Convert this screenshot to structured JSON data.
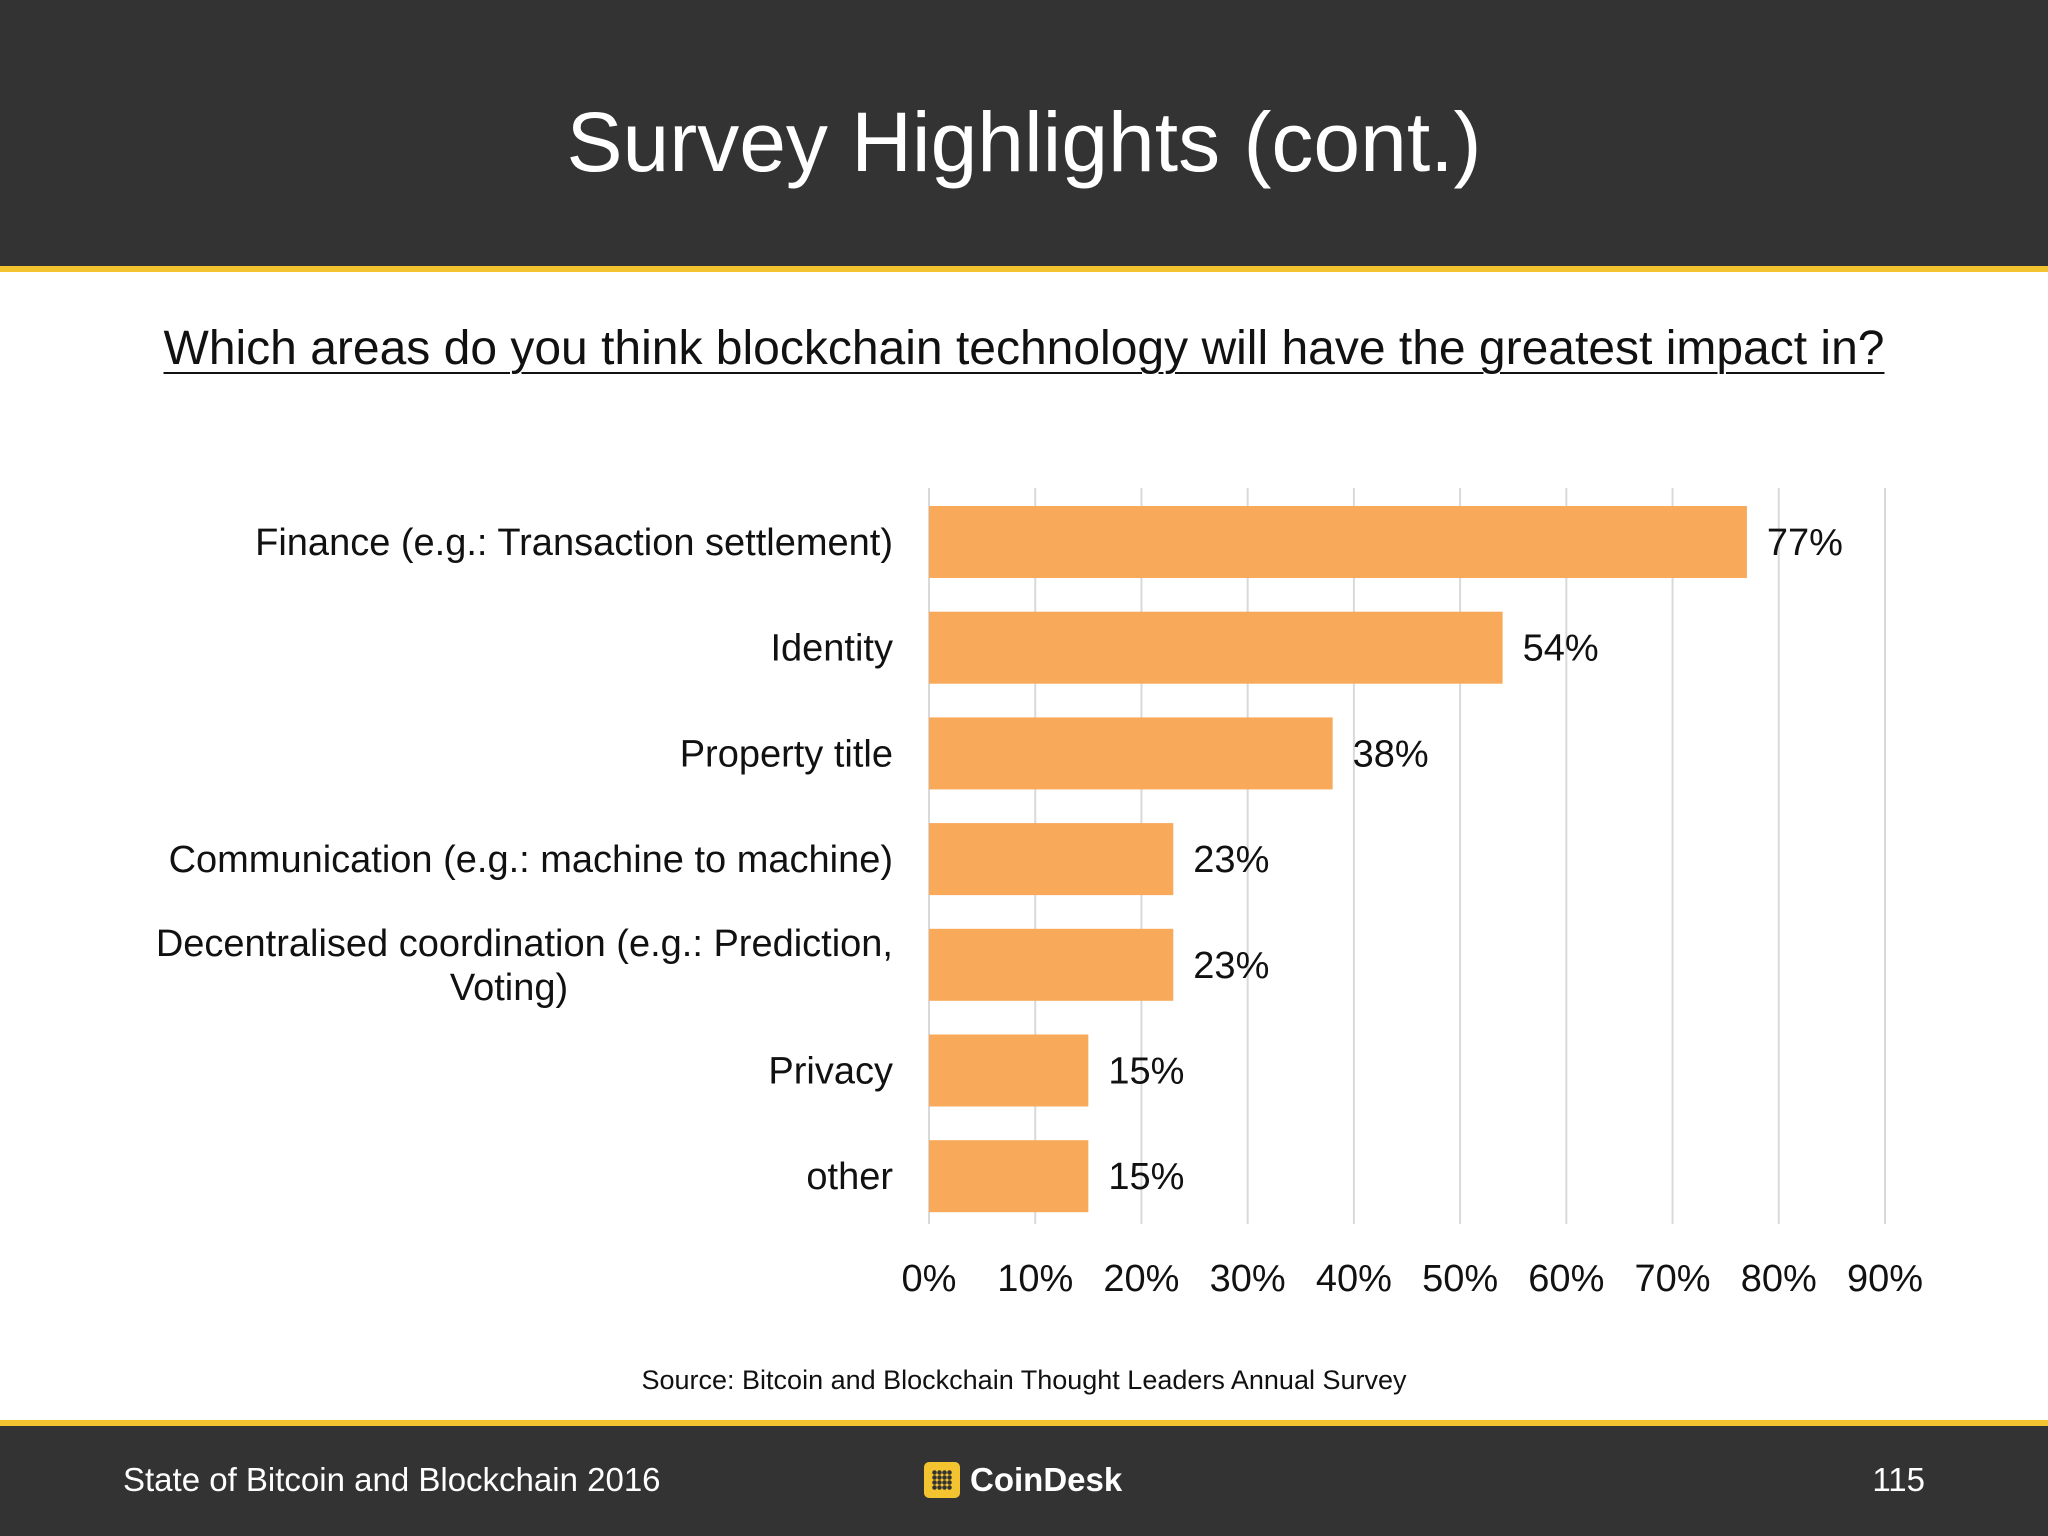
{
  "slide": {
    "title": "Survey Highlights (cont.)",
    "question": "Which areas do you think blockchain technology will have the greatest impact in?",
    "source": "Source: Bitcoin and Blockchain Thought Leaders Annual Survey"
  },
  "footer": {
    "left_text": "State of Bitcoin and Blockchain 2016",
    "brand": "CoinDesk",
    "page_number": "115"
  },
  "colors": {
    "header_bg": "#333333",
    "accent": "#f4c430",
    "bar": "#f8a95a",
    "grid": "#d9d9d9"
  },
  "icons": {
    "brand": "coindesk-logo-icon"
  },
  "chart_data": {
    "type": "bar",
    "orientation": "horizontal",
    "categories": [
      [
        "Finance (e.g.: Transaction settlement)"
      ],
      [
        "Identity"
      ],
      [
        "Property title"
      ],
      [
        "Communication (e.g.: machine to machine)"
      ],
      [
        "Decentralised coordination (e.g.: Prediction,",
        "Voting)"
      ],
      [
        "Privacy"
      ],
      [
        "other"
      ]
    ],
    "values": [
      77,
      54,
      38,
      23,
      23,
      15,
      15
    ],
    "value_labels": [
      "77%",
      "54%",
      "38%",
      "23%",
      "23%",
      "15%",
      "15%"
    ],
    "xlim": [
      0,
      90
    ],
    "ticks": [
      0,
      10,
      20,
      30,
      40,
      50,
      60,
      70,
      80,
      90
    ],
    "tick_labels": [
      "0%",
      "10%",
      "20%",
      "30%",
      "40%",
      "50%",
      "60%",
      "70%",
      "80%",
      "90%"
    ],
    "grid": true,
    "legend": "none"
  }
}
